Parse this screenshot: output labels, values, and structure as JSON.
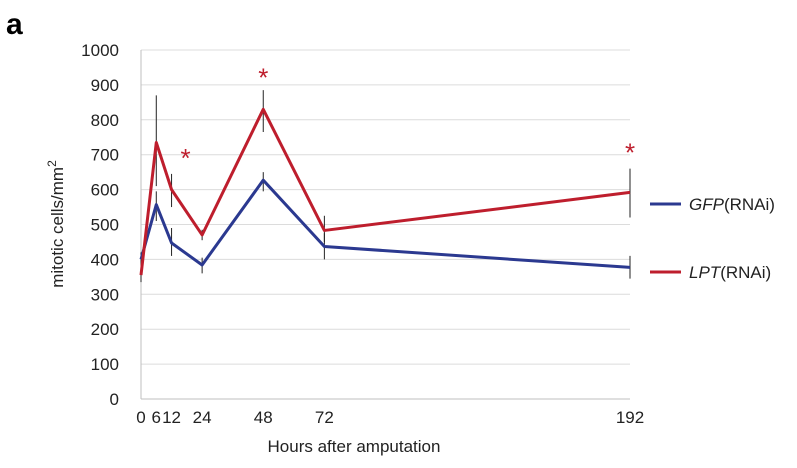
{
  "panel_label": "a",
  "chart_data": {
    "type": "line",
    "title": "",
    "xlabel": "Hours after amputation",
    "ylabel": "mitotic cells/mm",
    "ylabel_superscript": "2",
    "x": [
      0,
      6,
      12,
      24,
      48,
      72,
      192
    ],
    "x_tick_labels": [
      "0",
      "6",
      "12",
      "24",
      "48",
      "72",
      "192"
    ],
    "xlim": [
      0,
      192
    ],
    "ylim": [
      0,
      1000
    ],
    "y_ticks": [
      "0",
      "100",
      "200",
      "300",
      "400",
      "500",
      "600",
      "700",
      "800",
      "900",
      "1000"
    ],
    "grid": "horizontal",
    "legend_position": "right",
    "series": [
      {
        "name_italic": "GFP",
        "name_suffix": "(RNAi)",
        "color": "#2b3990",
        "values": [
          400,
          557,
          447,
          384,
          627,
          437,
          377
        ],
        "error_low": [
          360,
          510,
          410,
          360,
          595,
          400,
          345
        ],
        "error_high": [
          420,
          595,
          490,
          405,
          650,
          475,
          410
        ]
      },
      {
        "name_italic": "LPT",
        "name_suffix": "(RNAi)",
        "color": "#be1e2d",
        "values": [
          355,
          735,
          600,
          470,
          830,
          483,
          592
        ],
        "error_low": [
          335,
          610,
          550,
          455,
          765,
          450,
          520
        ],
        "error_high": [
          380,
          870,
          645,
          485,
          885,
          525,
          660
        ]
      }
    ],
    "annotations": [
      {
        "text": "*",
        "x": 12,
        "y": 705,
        "color": "#be1e2d"
      },
      {
        "text": "*",
        "x": 48,
        "y": 935,
        "color": "#be1e2d"
      },
      {
        "text": "*",
        "x": 192,
        "y": 720,
        "color": "#be1e2d"
      }
    ]
  }
}
